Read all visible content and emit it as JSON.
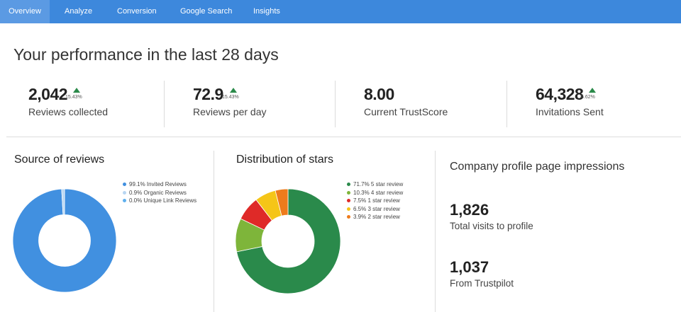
{
  "nav": {
    "tabs": [
      {
        "label": "Overview",
        "active": true
      },
      {
        "label": "Analyze"
      },
      {
        "label": "Conversion"
      },
      {
        "label": "Google Search"
      },
      {
        "label": "Insights"
      }
    ]
  },
  "page_title": "Your performance in the last 28 days",
  "kpis": [
    {
      "value": "2,042",
      "trend": "15.43%",
      "trend_direction": "up",
      "label": "Reviews collected"
    },
    {
      "value": "72.9",
      "trend": "15.43%",
      "trend_direction": "up",
      "label": "Reviews per day"
    },
    {
      "value": "8.00",
      "label": "Current TrustScore"
    },
    {
      "value": "64,328",
      "trend": "6.62%",
      "trend_direction": "up",
      "label": "Invitations Sent"
    }
  ],
  "colors": {
    "nav_bg": "#3d88dc",
    "nav_active": "#5b9ae3",
    "trend_up": "#2b8a4a"
  },
  "sources": {
    "title": "Source of reviews",
    "chart_data": {
      "type": "pie",
      "title": "Source of reviews",
      "labels": [
        "Invited Reviews",
        "Organic Reviews",
        "Unique Link Reviews"
      ],
      "values": [
        99.1,
        0.9,
        0.0
      ],
      "legend": [
        "99.1% Invited Reviews",
        "0.9% Organic Reviews",
        "0.0% Unique Link Reviews"
      ],
      "colors": [
        "#4190e0",
        "#b8d6f2",
        "#5fb0ee"
      ],
      "donut": true,
      "legend_position": "right"
    }
  },
  "stars": {
    "title": "Distribution of stars",
    "chart_data": {
      "type": "pie",
      "title": "Distribution of stars",
      "labels": [
        "5 star review",
        "4 star review",
        "1 star review",
        "3 star review",
        "2 star review"
      ],
      "values": [
        71.7,
        10.3,
        7.5,
        6.5,
        3.9
      ],
      "legend": [
        "71.7% 5 star review",
        "10.3% 4 star review",
        "7.5% 1 star review",
        "6.5% 3 star review",
        "3.9% 2 star review"
      ],
      "colors": [
        "#2a8a4b",
        "#7eb53a",
        "#df2a28",
        "#f5c518",
        "#ee7b1c"
      ],
      "donut": true,
      "legend_position": "right"
    }
  },
  "impressions": {
    "title": "Company profile page impressions",
    "items": [
      {
        "value": "1,826",
        "label": "Total visits to profile"
      },
      {
        "value": "1,037",
        "label": "From Trustpilot"
      }
    ]
  }
}
